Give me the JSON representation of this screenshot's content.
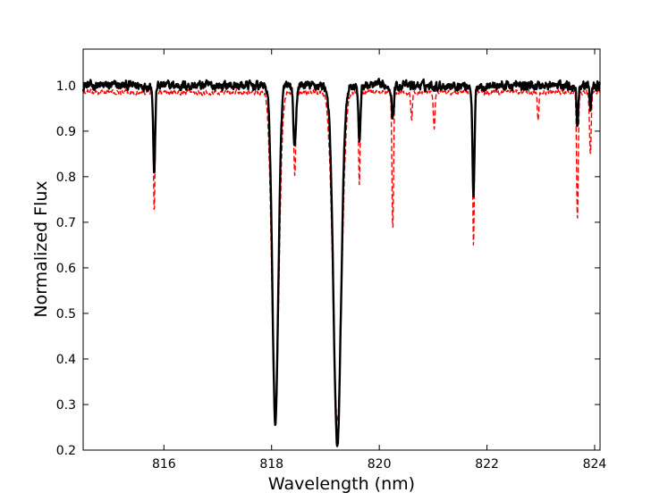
{
  "chart_data": {
    "type": "line",
    "title": "",
    "xlabel": "Wavelength (nm)",
    "ylabel": "Normalized Flux",
    "xlim": [
      814.5,
      824.1
    ],
    "ylim": [
      0.2,
      1.08
    ],
    "xticks": [
      816,
      818,
      820,
      822,
      824
    ],
    "xtick_labels": [
      "816",
      "818",
      "820",
      "822",
      "824"
    ],
    "yticks": [
      0.2,
      0.3,
      0.4,
      0.5,
      0.6,
      0.7,
      0.8,
      0.9,
      1.0
    ],
    "ytick_labels": [
      "0.2",
      "0.3",
      "0.4",
      "0.5",
      "0.6",
      "0.7",
      "0.8",
      "0.9",
      "1.0"
    ],
    "grid": false,
    "legend": false,
    "series": [
      {
        "style": "solid",
        "color": "#000000",
        "continuum": 1.0,
        "noise": 0.016,
        "absorption_lines": [
          {
            "center": 815.82,
            "depth": 0.19,
            "sigma": 0.018
          },
          {
            "center": 818.07,
            "depth": 0.74,
            "sigma": 0.055
          },
          {
            "center": 818.43,
            "depth": 0.14,
            "sigma": 0.025
          },
          {
            "center": 819.22,
            "depth": 0.79,
            "sigma": 0.07
          },
          {
            "center": 819.63,
            "depth": 0.12,
            "sigma": 0.02
          },
          {
            "center": 820.25,
            "depth": 0.07,
            "sigma": 0.02
          },
          {
            "center": 821.75,
            "depth": 0.24,
            "sigma": 0.02
          },
          {
            "center": 823.68,
            "depth": 0.09,
            "sigma": 0.015
          },
          {
            "center": 823.92,
            "depth": 0.05,
            "sigma": 0.015
          }
        ]
      },
      {
        "style": "dashed",
        "color": "#ff0000",
        "continuum": 0.985,
        "noise": 0.008,
        "absorption_lines": [
          {
            "center": 815.82,
            "depth": 0.26,
            "sigma": 0.015
          },
          {
            "center": 818.07,
            "depth": 0.7,
            "sigma": 0.065
          },
          {
            "center": 818.43,
            "depth": 0.18,
            "sigma": 0.018
          },
          {
            "center": 819.22,
            "depth": 0.72,
            "sigma": 0.08
          },
          {
            "center": 819.63,
            "depth": 0.2,
            "sigma": 0.015
          },
          {
            "center": 820.25,
            "depth": 0.3,
            "sigma": 0.015
          },
          {
            "center": 820.6,
            "depth": 0.06,
            "sigma": 0.015
          },
          {
            "center": 821.02,
            "depth": 0.08,
            "sigma": 0.015
          },
          {
            "center": 821.75,
            "depth": 0.34,
            "sigma": 0.015
          },
          {
            "center": 822.95,
            "depth": 0.06,
            "sigma": 0.015
          },
          {
            "center": 823.68,
            "depth": 0.28,
            "sigma": 0.015
          },
          {
            "center": 823.92,
            "depth": 0.14,
            "sigma": 0.015
          }
        ]
      }
    ]
  }
}
